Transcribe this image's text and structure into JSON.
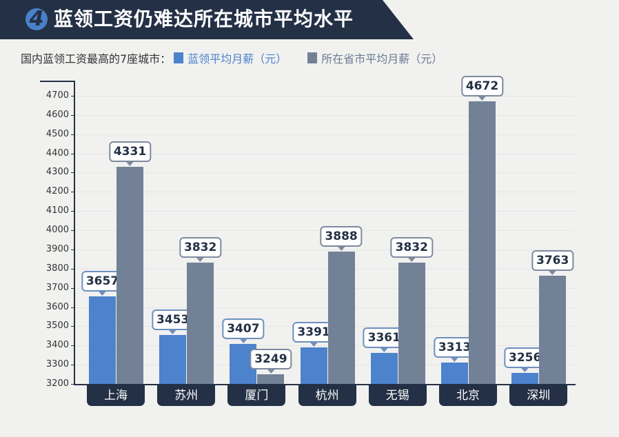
{
  "header": {
    "number": "4",
    "title": "蓝领工资仍难达所在城市平均水平"
  },
  "subtitle": {
    "text": "国内蓝领工资最高的7座城市：",
    "legend": [
      {
        "label": "蓝领平均月薪（元）",
        "color": "#4d82cc"
      },
      {
        "label": "所在省市平均月薪（元）",
        "color": "#738196"
      }
    ]
  },
  "chart_data": {
    "type": "bar",
    "title": "蓝领工资仍难达所在城市平均水平",
    "subtitle": "国内蓝领工资最高的7座城市",
    "categories": [
      "上海",
      "苏州",
      "厦门",
      "杭州",
      "无锡",
      "北京",
      "深圳"
    ],
    "series": [
      {
        "name": "蓝领平均月薪（元）",
        "color": "#4d82cc",
        "values": [
          3657,
          3453,
          3407,
          3391,
          3361,
          3313,
          3256
        ]
      },
      {
        "name": "所在省市平均月薪（元）",
        "color": "#738196",
        "values": [
          4331,
          3832,
          3249,
          3888,
          3832,
          4672,
          3763
        ]
      }
    ],
    "xlabel": "",
    "ylabel": "",
    "ylim": [
      3200,
      4750
    ],
    "yticks": [
      3200,
      3300,
      3400,
      3500,
      3600,
      3700,
      3800,
      3900,
      4000,
      4100,
      4200,
      4300,
      4400,
      4500,
      4600,
      4700
    ],
    "grid": true,
    "legend_position": "top",
    "data_labels": true
  }
}
